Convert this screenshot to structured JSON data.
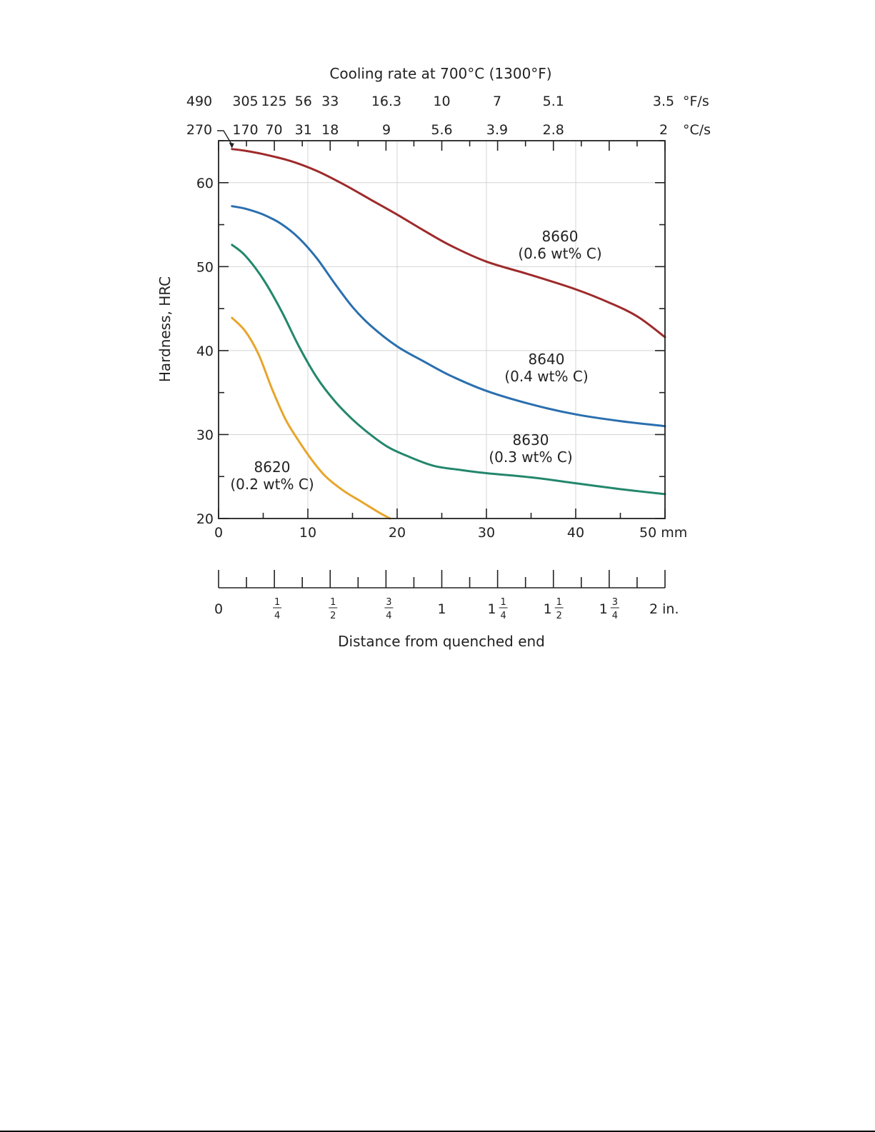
{
  "chart_data": {
    "type": "line",
    "xlabel": "Distance from quenched end",
    "x_unit": "mm",
    "ylabel": "Hardness, HRC",
    "xlim": [
      0,
      50
    ],
    "ylim": [
      20,
      65
    ],
    "x_ticks": [
      0,
      10,
      20,
      30,
      40,
      50
    ],
    "y_ticks": [
      20,
      30,
      40,
      50,
      60
    ],
    "x_tick_labels": [
      "0",
      "10",
      "20",
      "30",
      "40",
      "50 mm"
    ],
    "y_tick_labels": [
      "20",
      "30",
      "40",
      "50",
      "60"
    ],
    "grid": true,
    "inch_axis": {
      "ticks_in": [
        0,
        0.125,
        0.25,
        0.375,
        0.5,
        0.625,
        0.75,
        0.875,
        1,
        1.125,
        1.25,
        1.375,
        1.5,
        1.625,
        1.75,
        1.875,
        2
      ],
      "labels": [
        {
          "value": 0,
          "whole": "0",
          "num": "",
          "den": "",
          "suffix": ""
        },
        {
          "value": 0.25,
          "whole": "",
          "num": "1",
          "den": "4",
          "suffix": ""
        },
        {
          "value": 0.5,
          "whole": "",
          "num": "1",
          "den": "2",
          "suffix": ""
        },
        {
          "value": 0.75,
          "whole": "",
          "num": "3",
          "den": "4",
          "suffix": ""
        },
        {
          "value": 1,
          "whole": "1",
          "num": "",
          "den": "",
          "suffix": ""
        },
        {
          "value": 1.25,
          "whole": "1",
          "num": "1",
          "den": "4",
          "suffix": ""
        },
        {
          "value": 1.5,
          "whole": "1",
          "num": "1",
          "den": "2",
          "suffix": ""
        },
        {
          "value": 1.75,
          "whole": "1",
          "num": "3",
          "den": "4",
          "suffix": ""
        },
        {
          "value": 2,
          "whole": "2 in.",
          "num": "",
          "den": "",
          "suffix": ""
        }
      ]
    },
    "cooling_rate_axis": {
      "title": "Cooling rate at 700°C (1300°F)",
      "f_unit": "°F/s",
      "c_unit": "°C/s",
      "f_labels": [
        {
          "x": 0,
          "text": "490"
        },
        {
          "x": 3,
          "text": "305"
        },
        {
          "x": 6.2,
          "text": "125"
        },
        {
          "x": 9.5,
          "text": "56"
        },
        {
          "x": 12.5,
          "text": "33"
        },
        {
          "x": 18.8,
          "text": "16.3"
        },
        {
          "x": 25,
          "text": "10"
        },
        {
          "x": 31.2,
          "text": "7"
        },
        {
          "x": 37.5,
          "text": "5.1"
        },
        {
          "x": 50,
          "text": "3.5"
        }
      ],
      "c_labels": [
        {
          "x": 0,
          "text": "270"
        },
        {
          "x": 3,
          "text": "170"
        },
        {
          "x": 6.2,
          "text": "70"
        },
        {
          "x": 9.5,
          "text": "31"
        },
        {
          "x": 12.5,
          "text": "18"
        },
        {
          "x": 18.8,
          "text": "9"
        },
        {
          "x": 25,
          "text": "5.6"
        },
        {
          "x": 31.2,
          "text": "3.9"
        },
        {
          "x": 37.5,
          "text": "2.8"
        },
        {
          "x": 50,
          "text": "2"
        }
      ],
      "top_ticks_x": [
        0,
        3.125,
        6.25,
        9.375,
        12.5,
        15.625,
        18.75,
        21.875,
        25,
        28.125,
        31.25,
        34.375,
        37.5,
        40.625,
        43.75,
        46.875,
        50
      ]
    },
    "series": [
      {
        "name": "8660",
        "sublabel": "(0.6 wt% C)",
        "color": "#9e2a2b",
        "x": [
          1.5,
          3,
          5,
          8,
          11,
          14,
          17,
          20,
          23,
          26,
          30,
          35,
          40,
          44,
          47,
          50
        ],
        "y": [
          64,
          63.8,
          63.4,
          62.6,
          61.4,
          59.8,
          58.0,
          56.2,
          54.3,
          52.5,
          50.6,
          49.0,
          47.3,
          45.6,
          44.0,
          41.6
        ]
      },
      {
        "name": "8640",
        "sublabel": "(0.4 wt% C)",
        "color": "#2a6fae",
        "x": [
          1.5,
          3,
          5,
          7,
          9,
          11,
          13,
          15,
          17,
          20,
          23,
          26,
          30,
          35,
          40,
          45,
          50
        ],
        "y": [
          57.2,
          56.9,
          56.2,
          55.1,
          53.4,
          51.0,
          48.0,
          45.2,
          43.0,
          40.5,
          38.7,
          37.0,
          35.2,
          33.6,
          32.4,
          31.6,
          31.0
        ]
      },
      {
        "name": "8630",
        "sublabel": "(0.3 wt% C)",
        "color": "#23876c",
        "x": [
          1.5,
          3,
          5,
          7,
          9,
          11,
          13,
          15,
          17,
          19,
          21,
          24,
          27,
          30,
          35,
          40,
          45,
          50
        ],
        "y": [
          52.6,
          51.3,
          48.5,
          44.8,
          40.5,
          36.8,
          34.0,
          31.8,
          30.0,
          28.5,
          27.5,
          26.3,
          25.8,
          25.4,
          24.9,
          24.2,
          23.5,
          22.9
        ]
      },
      {
        "name": "8620",
        "sublabel": "(0.2 wt% C)",
        "color": "#e8a52b",
        "x": [
          1.5,
          3,
          4.5,
          6,
          7.5,
          9,
          10.5,
          12,
          14,
          16,
          18,
          19.2
        ],
        "y": [
          43.9,
          42.3,
          39.5,
          35.4,
          31.8,
          29.2,
          26.9,
          25.0,
          23.3,
          22.0,
          20.7,
          20.0
        ]
      }
    ],
    "annotation_pointer": {
      "x": 1.5,
      "y": 64
    }
  }
}
